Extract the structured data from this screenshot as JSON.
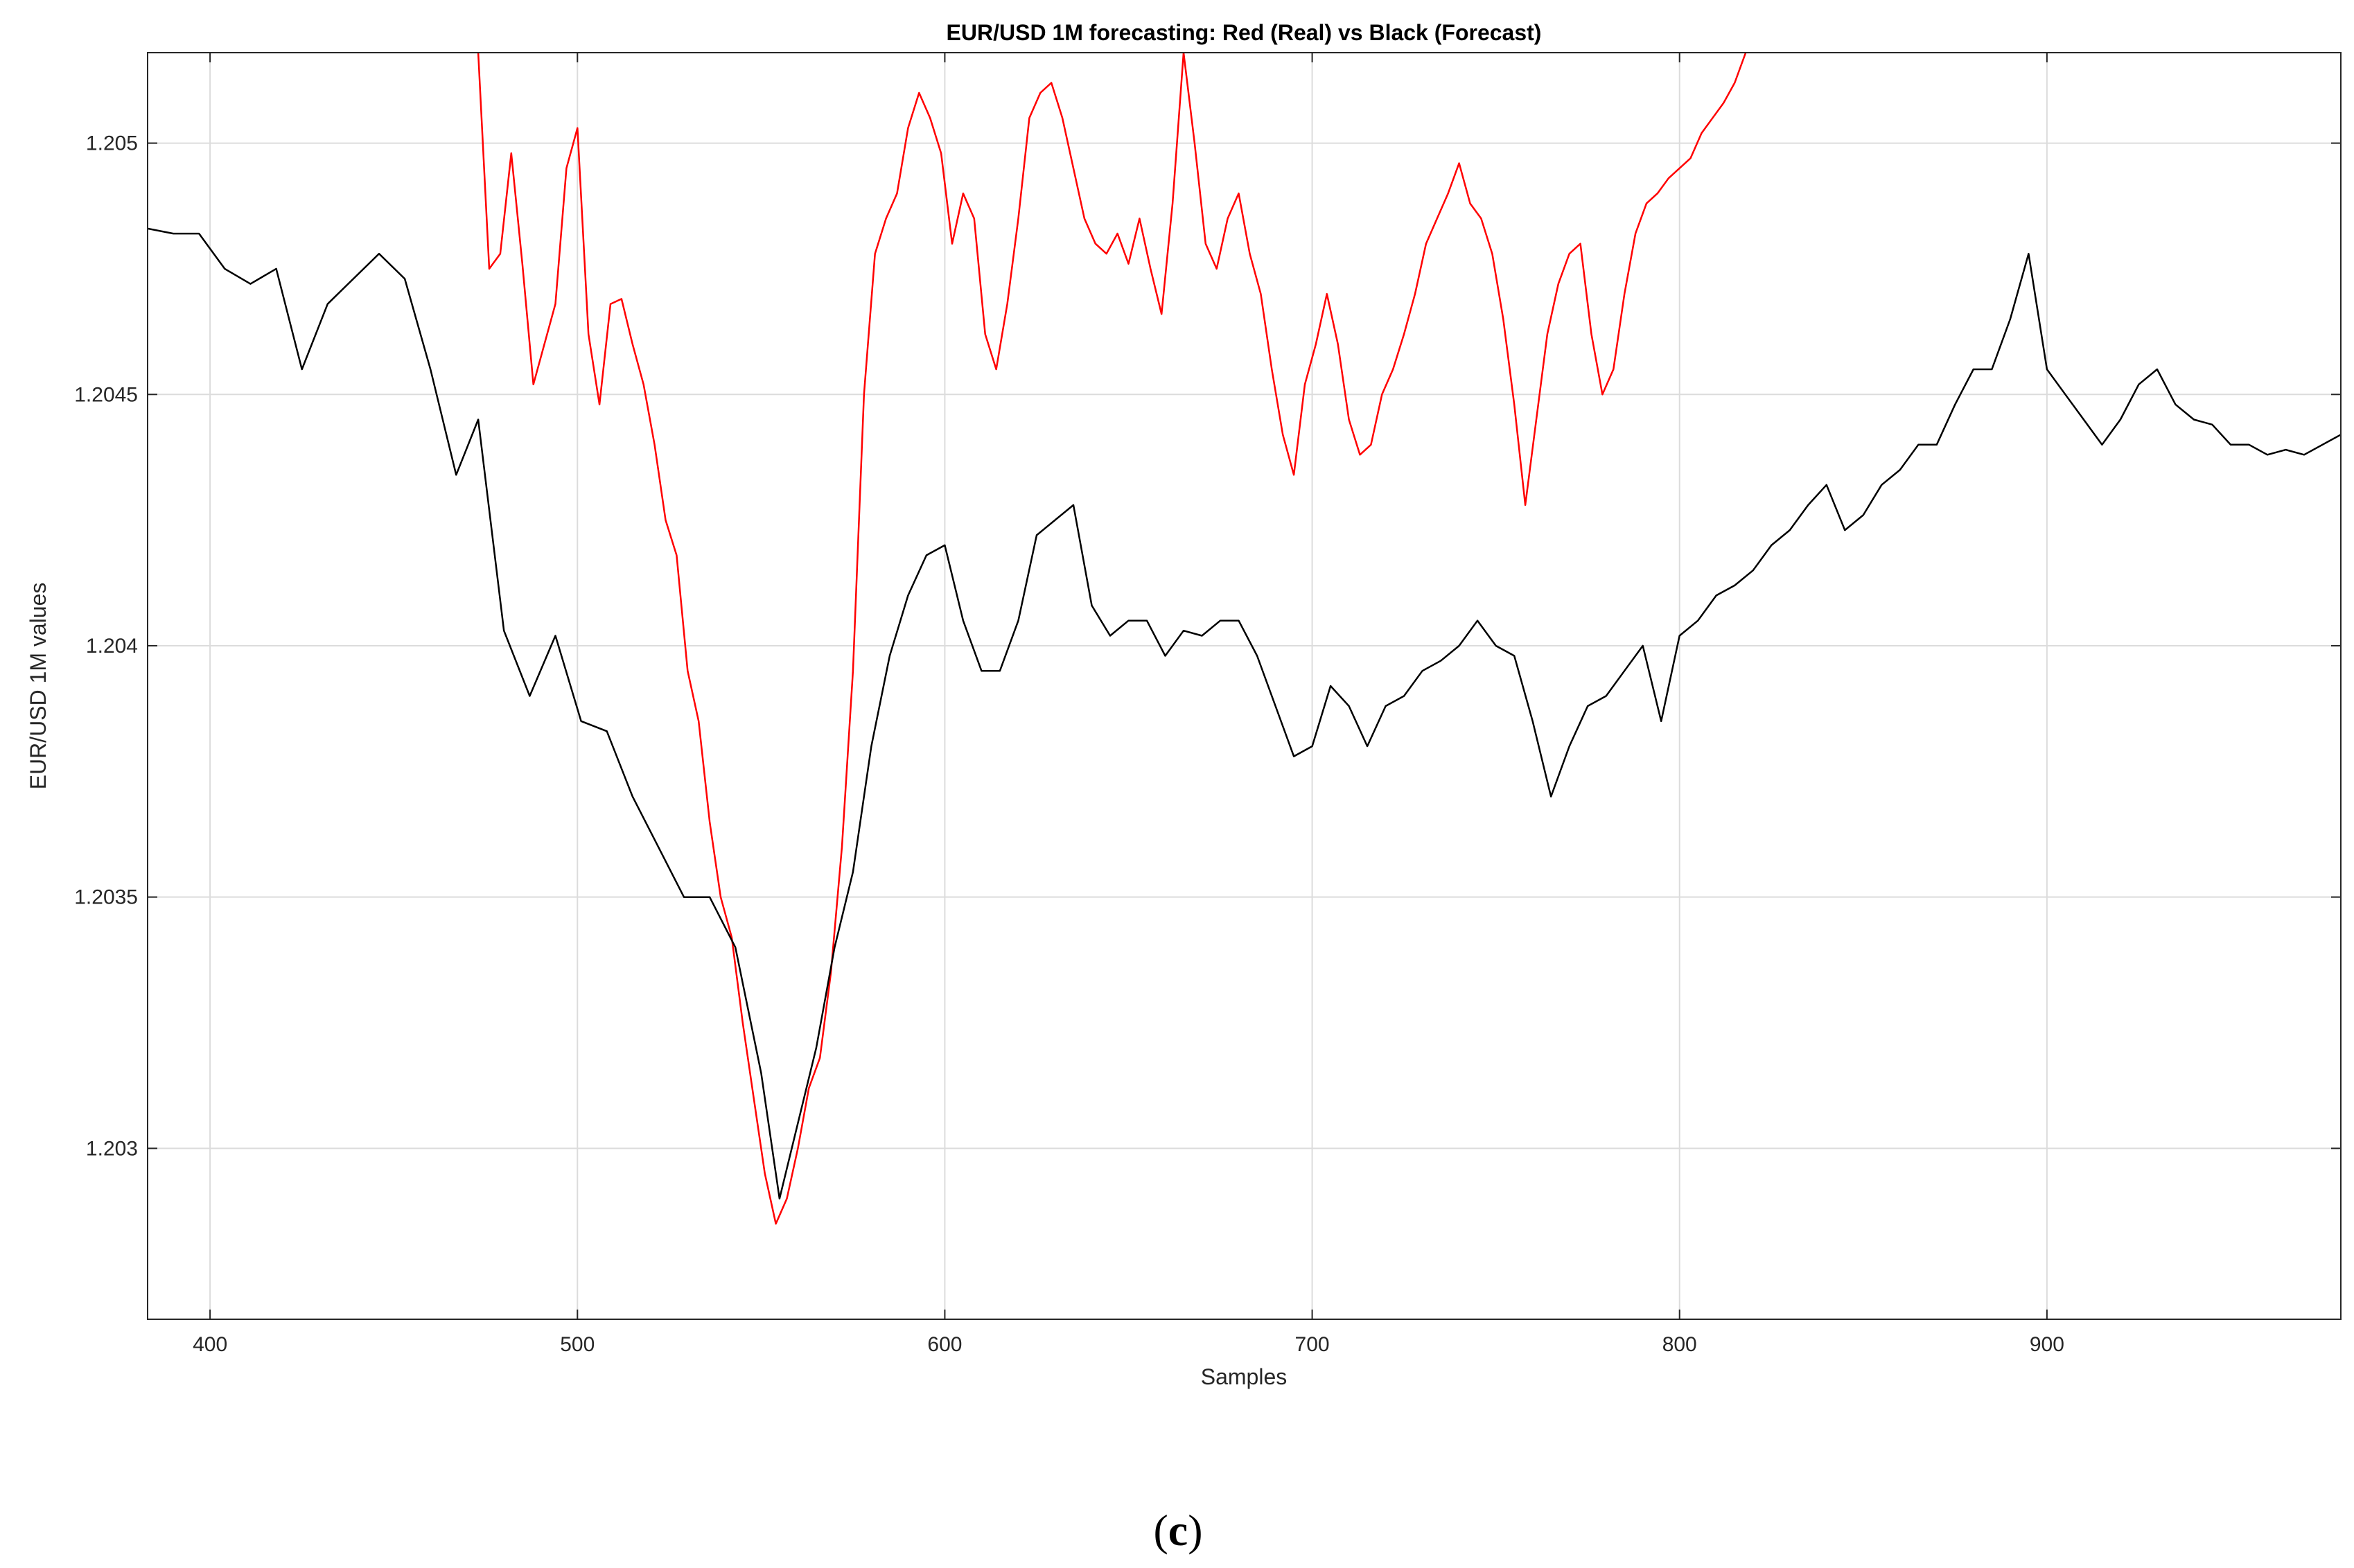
{
  "caption": {
    "open": "(",
    "letter": "c",
    "close": ")"
  },
  "chart_data": {
    "type": "line",
    "title": "EUR/USD 1M forecasting: Red (Real) vs Black (Forecast)",
    "xlabel": "Samples",
    "ylabel": "EUR/USD 1M values",
    "xlim": [
      383,
      980
    ],
    "ylim": [
      1.20266,
      1.20518
    ],
    "xticks": [
      400,
      500,
      600,
      700,
      800,
      900
    ],
    "xtick_labels": [
      "400",
      "500",
      "600",
      "700",
      "800",
      "900"
    ],
    "yticks": [
      1.203,
      1.2035,
      1.204,
      1.2045,
      1.205
    ],
    "ytick_labels": [
      "1.203",
      "1.2035",
      "1.204",
      "1.2045",
      "1.205"
    ],
    "grid": true,
    "series": [
      {
        "color": "#ff0000",
        "values_x": [
          473,
          476,
          479,
          482,
          485,
          488,
          491,
          494,
          497,
          500,
          503,
          506,
          509,
          512,
          515,
          518,
          521,
          524,
          527,
          530,
          533,
          536,
          539,
          542,
          545,
          548,
          551,
          554,
          557,
          560,
          563,
          566,
          569,
          572,
          575,
          578,
          581,
          584,
          587,
          590,
          593,
          596,
          599,
          602,
          605,
          608,
          611,
          614,
          617,
          620,
          623,
          626,
          629,
          632,
          635,
          638,
          641,
          644,
          647,
          650,
          653,
          656,
          659,
          662,
          665,
          668,
          671,
          674,
          677,
          680,
          683,
          686,
          689,
          692,
          695,
          698,
          701,
          704,
          707,
          710,
          713,
          716,
          719,
          722,
          725,
          728,
          731,
          734,
          737,
          740,
          743,
          746,
          749,
          752,
          755,
          758,
          761,
          764,
          767,
          770,
          773,
          776,
          779,
          782,
          785,
          788,
          791,
          794,
          797,
          800,
          803,
          806,
          809,
          812,
          815,
          818
        ],
        "values_y": [
          1.20518,
          1.20475,
          1.20478,
          1.20498,
          1.20476,
          1.20452,
          1.2046,
          1.20468,
          1.20495,
          1.20503,
          1.20462,
          1.20448,
          1.20468,
          1.20469,
          1.2046,
          1.20452,
          1.2044,
          1.20425,
          1.20418,
          1.20395,
          1.20385,
          1.20365,
          1.2035,
          1.20342,
          1.20325,
          1.2031,
          1.20295,
          1.20285,
          1.2029,
          1.203,
          1.20312,
          1.20318,
          1.20335,
          1.2036,
          1.20395,
          1.2045,
          1.20478,
          1.20485,
          1.2049,
          1.20503,
          1.2051,
          1.20505,
          1.20498,
          1.2048,
          1.2049,
          1.20485,
          1.20462,
          1.20455,
          1.20468,
          1.20485,
          1.20505,
          1.2051,
          1.20512,
          1.20505,
          1.20495,
          1.20485,
          1.2048,
          1.20478,
          1.20482,
          1.20476,
          1.20485,
          1.20475,
          1.20466,
          1.20488,
          1.20518,
          1.205,
          1.2048,
          1.20475,
          1.20485,
          1.2049,
          1.20478,
          1.2047,
          1.20455,
          1.20442,
          1.20434,
          1.20452,
          1.2046,
          1.2047,
          1.2046,
          1.20445,
          1.20438,
          1.2044,
          1.2045,
          1.20455,
          1.20462,
          1.2047,
          1.2048,
          1.20485,
          1.2049,
          1.20496,
          1.20488,
          1.20485,
          1.20478,
          1.20465,
          1.20448,
          1.20428,
          1.20445,
          1.20462,
          1.20472,
          1.20478,
          1.2048,
          1.20462,
          1.2045,
          1.20455,
          1.2047,
          1.20482,
          1.20488,
          1.2049,
          1.20493,
          1.20495,
          1.20497,
          1.20502,
          1.20505,
          1.20508,
          1.20512,
          1.20518
        ]
      },
      {
        "color": "#000000",
        "values_x": [
          383,
          390,
          397,
          404,
          411,
          418,
          425,
          432,
          439,
          446,
          453,
          460,
          467,
          473,
          480,
          487,
          494,
          501,
          508,
          515,
          522,
          529,
          536,
          543,
          550,
          555,
          560,
          565,
          570,
          575,
          580,
          585,
          590,
          595,
          600,
          605,
          610,
          615,
          620,
          625,
          630,
          635,
          640,
          645,
          650,
          655,
          660,
          665,
          670,
          675,
          680,
          685,
          690,
          695,
          700,
          705,
          710,
          715,
          720,
          725,
          730,
          735,
          740,
          745,
          750,
          755,
          760,
          765,
          770,
          775,
          780,
          785,
          790,
          795,
          800,
          805,
          810,
          815,
          820,
          825,
          830,
          835,
          840,
          845,
          850,
          855,
          860,
          865,
          870,
          875,
          880,
          885,
          890,
          895,
          900,
          905,
          910,
          915,
          920,
          925,
          930,
          935,
          940,
          945,
          950,
          955,
          960,
          965,
          970,
          975,
          980
        ],
        "values_y": [
          1.20483,
          1.20482,
          1.20482,
          1.20475,
          1.20472,
          1.20475,
          1.20455,
          1.20468,
          1.20473,
          1.20478,
          1.20473,
          1.20455,
          1.20434,
          1.20445,
          1.20403,
          1.2039,
          1.20402,
          1.20385,
          1.20383,
          1.2037,
          1.2036,
          1.2035,
          1.2035,
          1.2034,
          1.20315,
          1.2029,
          1.20305,
          1.2032,
          1.2034,
          1.20355,
          1.2038,
          1.20398,
          1.2041,
          1.20418,
          1.2042,
          1.20405,
          1.20395,
          1.20395,
          1.20405,
          1.20422,
          1.20425,
          1.20428,
          1.20408,
          1.20402,
          1.20405,
          1.20405,
          1.20398,
          1.20403,
          1.20402,
          1.20405,
          1.20405,
          1.20398,
          1.20388,
          1.20378,
          1.2038,
          1.20392,
          1.20388,
          1.2038,
          1.20388,
          1.2039,
          1.20395,
          1.20397,
          1.204,
          1.20405,
          1.204,
          1.20398,
          1.20385,
          1.2037,
          1.2038,
          1.20388,
          1.2039,
          1.20395,
          1.204,
          1.20385,
          1.20402,
          1.20405,
          1.2041,
          1.20412,
          1.20415,
          1.2042,
          1.20423,
          1.20428,
          1.20432,
          1.20423,
          1.20426,
          1.20432,
          1.20435,
          1.2044,
          1.2044,
          1.20448,
          1.20455,
          1.20455,
          1.20465,
          1.20478,
          1.20455,
          1.2045,
          1.20445,
          1.2044,
          1.20445,
          1.20452,
          1.20455,
          1.20448,
          1.20445,
          1.20444,
          1.2044,
          1.2044,
          1.20438,
          1.20439,
          1.20438,
          1.2044,
          1.20442
        ]
      }
    ]
  }
}
